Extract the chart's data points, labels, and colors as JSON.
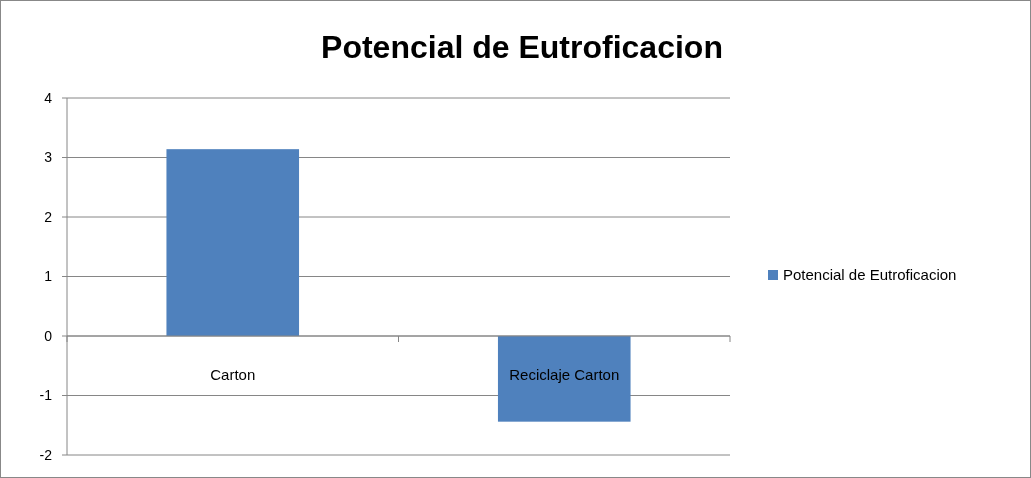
{
  "chart_data": {
    "type": "bar",
    "title": "Potencial de Eutroficacion",
    "categories": [
      "Carton",
      "Reciclaje Carton"
    ],
    "series": [
      {
        "name": "Potencial de Eutroficacion",
        "color": "#4f81bd",
        "values": [
          3.14,
          -1.44
        ]
      }
    ],
    "ylim": [
      -2,
      4
    ],
    "yticks": [
      -2,
      -1,
      0,
      1,
      2,
      3,
      4
    ],
    "grid": "y",
    "legend": "right"
  }
}
